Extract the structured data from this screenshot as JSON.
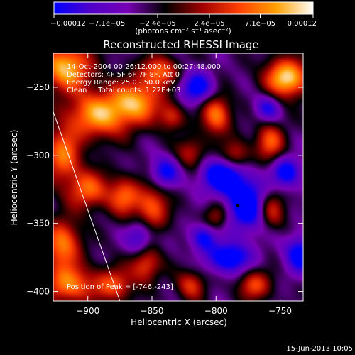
{
  "chart_data": {
    "type": "heatmap",
    "title": "Reconstructed RHESSI Image",
    "xlabel": "Heliocentric X (arcsec)",
    "ylabel": "Heliocentric Y (arcsec)",
    "xlim": [
      -927,
      -732
    ],
    "ylim": [
      -407,
      -225
    ],
    "x_ticks": [
      -900,
      -850,
      -800,
      -750
    ],
    "x_tick_labels": [
      "−900",
      "−850",
      "−800",
      "−750"
    ],
    "y_ticks": [
      -250,
      -300,
      -350,
      -400
    ],
    "y_tick_labels": [
      "−250",
      "−300",
      "−350",
      "−400"
    ],
    "colorbar": {
      "label": "(photons cm⁻² s⁻¹ asec⁻²)",
      "range": [
        -0.00012,
        0.00012
      ],
      "ticks": [
        -0.00012,
        -7.1e-05,
        -2.4e-05,
        2.4e-05,
        7.1e-05,
        0.00012
      ],
      "tick_labels": [
        "−0.00012",
        "−7.1e−05",
        "−2.4e−05",
        "2.4e−05",
        "7.1e−05",
        "0.00012"
      ],
      "colormap": [
        "#0000ff",
        "#5000c8",
        "#7800b4",
        "#000000",
        "#a00000",
        "#ff4000",
        "#ffa000",
        "#ffffff"
      ]
    },
    "annotations": {
      "time_range": "14-Oct-2004 00:26:12.000 to 00:27:48.000",
      "detectors": "Detectors: 4F 5F 6F 7F 8F, Att 0",
      "energy": "Energy Range: 25.0 - 50.0 keV",
      "clean": "Clean     Total counts: 1.22E+03",
      "peak": "Position of Peak = [-746,-243]"
    },
    "peak_position": [
      -746,
      -243
    ],
    "limb_line": [
      [
        -927,
        -268
      ],
      [
        -875,
        -407
      ]
    ],
    "marker": {
      "x": -783,
      "y": -337
    },
    "blobs": [
      {
        "x": -917,
        "y": -235,
        "sx": 14,
        "sy": 12,
        "a": 1.1
      },
      {
        "x": -892,
        "y": -270,
        "sx": 18,
        "sy": 12,
        "a": 1.0
      },
      {
        "x": -862,
        "y": -260,
        "sx": 14,
        "sy": 11,
        "a": 0.9
      },
      {
        "x": -845,
        "y": -238,
        "sx": 10,
        "sy": 8,
        "a": 0.8
      },
      {
        "x": -920,
        "y": -300,
        "sx": 10,
        "sy": 14,
        "a": 0.85
      },
      {
        "x": -900,
        "y": -325,
        "sx": 11,
        "sy": 10,
        "a": 0.8
      },
      {
        "x": -872,
        "y": -330,
        "sx": 9,
        "sy": 10,
        "a": 0.75
      },
      {
        "x": -920,
        "y": -365,
        "sx": 10,
        "sy": 13,
        "a": 0.9
      },
      {
        "x": -915,
        "y": -395,
        "sx": 14,
        "sy": 10,
        "a": 0.85
      },
      {
        "x": -880,
        "y": -395,
        "sx": 11,
        "sy": 9,
        "a": 0.7
      },
      {
        "x": -850,
        "y": -338,
        "sx": 9,
        "sy": 12,
        "a": 0.75
      },
      {
        "x": -855,
        "y": -380,
        "sx": 8,
        "sy": 9,
        "a": 0.7
      },
      {
        "x": -820,
        "y": -395,
        "sx": 8,
        "sy": 8,
        "a": 0.6
      },
      {
        "x": -820,
        "y": -298,
        "sx": 8,
        "sy": 8,
        "a": 0.55
      },
      {
        "x": -800,
        "y": -270,
        "sx": 8,
        "sy": 10,
        "a": 0.9
      },
      {
        "x": -785,
        "y": -300,
        "sx": 8,
        "sy": 8,
        "a": 0.6
      },
      {
        "x": -745,
        "y": -243,
        "sx": 12,
        "sy": 10,
        "a": 1.2
      },
      {
        "x": -758,
        "y": -290,
        "sx": 8,
        "sy": 10,
        "a": 0.75
      },
      {
        "x": -758,
        "y": -340,
        "sx": 8,
        "sy": 10,
        "a": 0.75
      },
      {
        "x": -770,
        "y": -395,
        "sx": 9,
        "sy": 8,
        "a": 0.7
      },
      {
        "x": -800,
        "y": -345,
        "sx": 7,
        "sy": 7,
        "a": 0.5
      },
      {
        "x": -835,
        "y": -272,
        "sx": 7,
        "sy": 7,
        "a": 0.55
      },
      {
        "x": -795,
        "y": -315,
        "sx": 12,
        "sy": 9,
        "a": -1.0
      },
      {
        "x": -775,
        "y": -337,
        "sx": 12,
        "sy": 13,
        "a": -1.0
      },
      {
        "x": -815,
        "y": -250,
        "sx": 9,
        "sy": 8,
        "a": -0.8
      },
      {
        "x": -745,
        "y": -312,
        "sx": 8,
        "sy": 8,
        "a": -0.8
      },
      {
        "x": -790,
        "y": -375,
        "sx": 12,
        "sy": 8,
        "a": -0.9
      },
      {
        "x": -840,
        "y": -312,
        "sx": 8,
        "sy": 8,
        "a": -0.7
      },
      {
        "x": -735,
        "y": -372,
        "sx": 8,
        "sy": 10,
        "a": -0.8
      },
      {
        "x": -860,
        "y": -360,
        "sx": 7,
        "sy": 8,
        "a": -0.6
      },
      {
        "x": -810,
        "y": -360,
        "sx": 7,
        "sy": 7,
        "a": -0.7
      },
      {
        "x": -760,
        "y": -265,
        "sx": 7,
        "sy": 7,
        "a": -0.6
      }
    ]
  },
  "footer": {
    "date": "15-Jun-2013 10:05"
  }
}
